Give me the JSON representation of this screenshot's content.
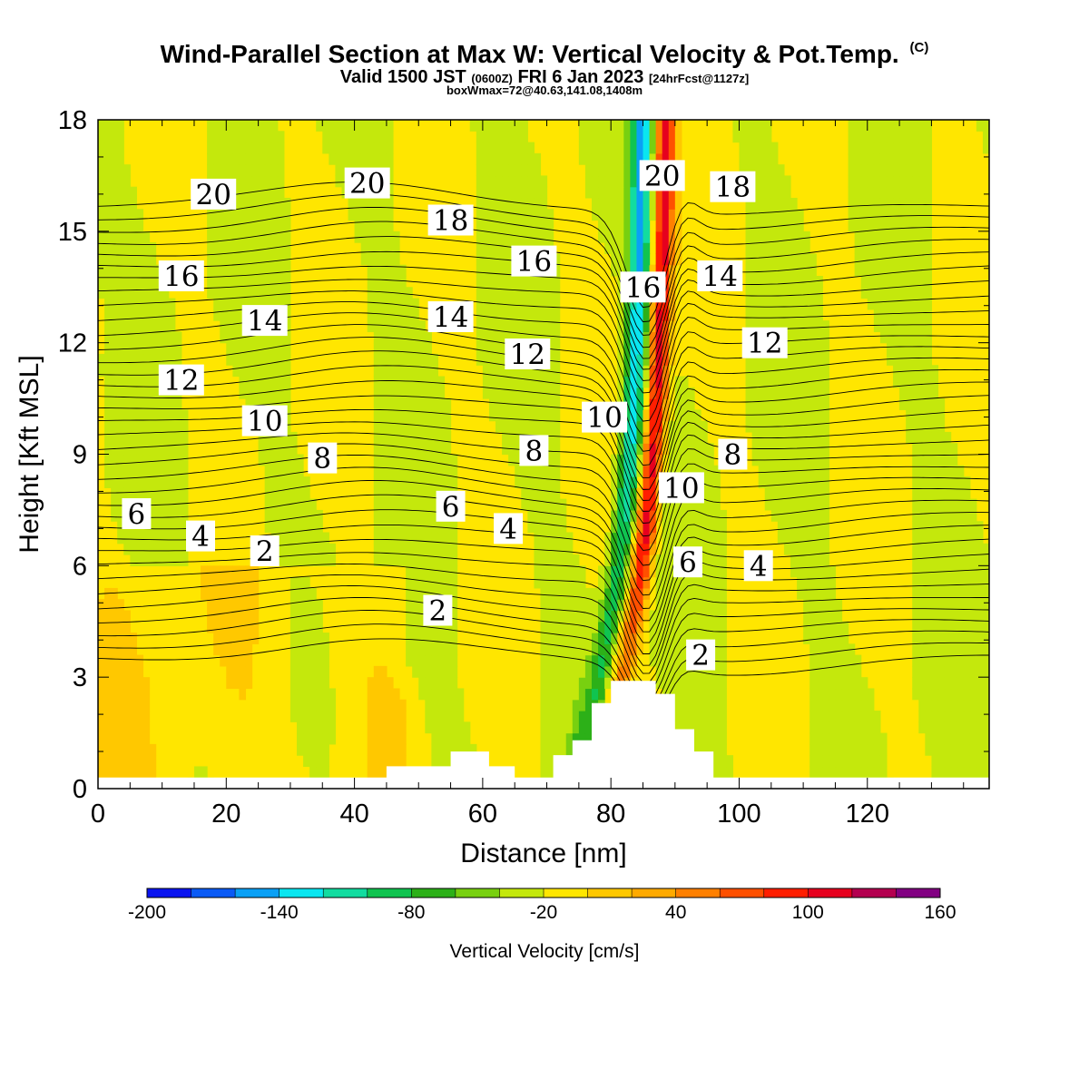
{
  "header": {
    "title": "Wind-Parallel Section at Max W: Vertical Velocity & Pot.Temp.",
    "title_mark": "(C)",
    "valid_prefix": "Valid 1500 JST",
    "valid_utc": "(0600Z)",
    "valid_date": "FRI 6 Jan 2023",
    "forecast_tag": "[24hrFcst@1127z]",
    "box_info": "boxWmax=72@40.63,141.08,1408m"
  },
  "colorbar": {
    "title": "Vertical Velocity [cm/s]",
    "tick_labels": [
      "-200",
      "-140",
      "-80",
      "-20",
      "40",
      "100",
      "160"
    ],
    "colors": [
      "#0a14f0",
      "#0a5af5",
      "#0aa0f5",
      "#0ae6f0",
      "#12dca0",
      "#10c450",
      "#2cb018",
      "#78d010",
      "#c4e80c",
      "#ffe600",
      "#ffc800",
      "#ffaa00",
      "#ff8000",
      "#ff5000",
      "#ff1e00",
      "#e6001e",
      "#b40050",
      "#820082"
    ]
  },
  "chart_data": {
    "type": "heatmap",
    "xlabel": "Distance [nm]",
    "ylabel": "Height [Kft MSL]",
    "xlim": [
      0,
      139
    ],
    "ylim": [
      0,
      18
    ],
    "x_ticks": [
      0,
      20,
      40,
      60,
      80,
      100,
      120
    ],
    "y_ticks": [
      0,
      3,
      6,
      9,
      12,
      15,
      18
    ],
    "shaded_field": "Vertical Velocity [cm/s]",
    "contour_field": "Pot.Temp.",
    "max_w_location_nm": 89,
    "terrain_kft": [
      [
        0,
        0.3
      ],
      [
        45,
        0.3
      ],
      [
        45,
        0.6
      ],
      [
        55,
        0.6
      ],
      [
        55,
        1.0
      ],
      [
        61,
        1.0
      ],
      [
        61,
        0.6
      ],
      [
        65,
        0.6
      ],
      [
        65,
        0.3
      ],
      [
        71,
        0.3
      ],
      [
        71,
        0.9
      ],
      [
        74,
        0.9
      ],
      [
        74,
        1.3
      ],
      [
        77,
        1.3
      ],
      [
        77,
        2.3
      ],
      [
        80,
        2.3
      ],
      [
        80,
        2.9
      ],
      [
        87,
        2.9
      ],
      [
        87,
        2.55
      ],
      [
        90,
        2.55
      ],
      [
        90,
        1.6
      ],
      [
        93,
        1.6
      ],
      [
        93,
        1.0
      ],
      [
        96,
        1.0
      ],
      [
        96,
        0.3
      ],
      [
        139,
        0.3
      ]
    ],
    "contour_labels": [
      {
        "text": "20",
        "x": 18,
        "y": 16.0
      },
      {
        "text": "20",
        "x": 42,
        "y": 16.3
      },
      {
        "text": "18",
        "x": 55,
        "y": 15.3
      },
      {
        "text": "16",
        "x": 13,
        "y": 13.8
      },
      {
        "text": "16",
        "x": 68,
        "y": 14.2
      },
      {
        "text": "14",
        "x": 26,
        "y": 12.6
      },
      {
        "text": "14",
        "x": 55,
        "y": 12.7
      },
      {
        "text": "12",
        "x": 13,
        "y": 11.0
      },
      {
        "text": "12",
        "x": 67,
        "y": 11.7
      },
      {
        "text": "10",
        "x": 26,
        "y": 9.9
      },
      {
        "text": "10",
        "x": 79,
        "y": 10.0
      },
      {
        "text": "8",
        "x": 35,
        "y": 8.9
      },
      {
        "text": "8",
        "x": 68,
        "y": 9.1
      },
      {
        "text": "6",
        "x": 6,
        "y": 7.4
      },
      {
        "text": "6",
        "x": 55,
        "y": 7.6
      },
      {
        "text": "4",
        "x": 16,
        "y": 6.8
      },
      {
        "text": "4",
        "x": 64,
        "y": 7.0
      },
      {
        "text": "2",
        "x": 26,
        "y": 6.4
      },
      {
        "text": "2",
        "x": 53,
        "y": 4.8
      },
      {
        "text": "20",
        "x": 88,
        "y": 16.5
      },
      {
        "text": "18",
        "x": 99,
        "y": 16.2
      },
      {
        "text": "16",
        "x": 85,
        "y": 13.5
      },
      {
        "text": "14",
        "x": 97,
        "y": 13.8
      },
      {
        "text": "12",
        "x": 104,
        "y": 12.0
      },
      {
        "text": "10",
        "x": 91,
        "y": 8.1
      },
      {
        "text": "8",
        "x": 99,
        "y": 9.0
      },
      {
        "text": "6",
        "x": 92,
        "y": 6.1
      },
      {
        "text": "4",
        "x": 103,
        "y": 6.0
      },
      {
        "text": "2",
        "x": 94,
        "y": 3.6
      }
    ]
  }
}
